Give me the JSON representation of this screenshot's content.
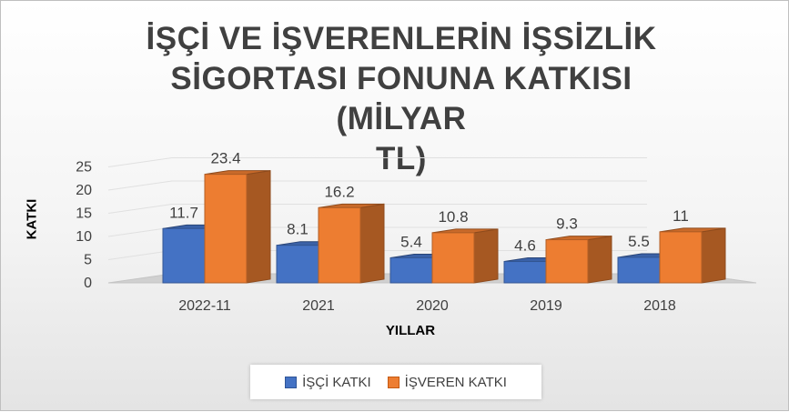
{
  "chart_data": {
    "type": "bar",
    "title": "İŞÇİ VE İŞVERENLERİN İŞSİZLİK SİGORTASI FONUNA KATKISI (MİLYAR TL)",
    "title_lines": [
      "İŞÇİ VE İŞVERENLERİN İŞSİZLİK",
      "SİGORTASI FONUNA KATKISI (MİLYAR",
      "TL)"
    ],
    "xlabel": "YILLAR",
    "ylabel": "KATKI",
    "ylim": [
      0,
      25
    ],
    "yticks": [
      "0",
      "5",
      "10",
      "15",
      "20",
      "25"
    ],
    "categories": [
      "2022-11",
      "2021",
      "2020",
      "2019",
      "2018"
    ],
    "series": [
      {
        "name": "İŞÇİ KATKI",
        "values": [
          11.7,
          8.1,
          5.4,
          4.6,
          5.5
        ],
        "labels": [
          "11.7",
          "8.1",
          "5.4",
          "4.6",
          "5.5"
        ],
        "color": "#4472C4"
      },
      {
        "name": "İŞVEREN KATKI",
        "values": [
          23.4,
          16.2,
          10.8,
          9.3,
          11
        ],
        "labels": [
          "23.4",
          "16.2",
          "10.8",
          "9.3",
          "11"
        ],
        "color": "#ED7D31"
      }
    ],
    "legend_position": "bottom",
    "grid": true
  }
}
